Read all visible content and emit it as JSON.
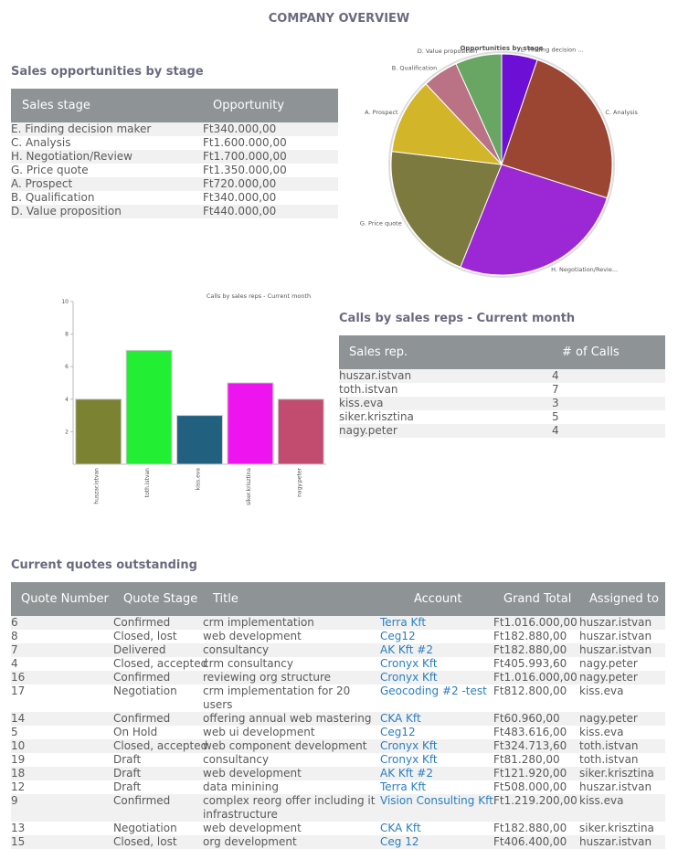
{
  "header": {
    "title": "COMPANY OVERVIEW"
  },
  "opportunities": {
    "title": "Sales opportunities by stage",
    "columns": [
      "Sales stage",
      "Opportunity"
    ],
    "rows": [
      [
        "E. Finding decision maker",
        "Ft340.000,00"
      ],
      [
        "C. Analysis",
        "Ft1.600.000,00"
      ],
      [
        "H. Negotiation/Review",
        "Ft1.700.000,00"
      ],
      [
        "G. Price quote",
        "Ft1.350.000,00"
      ],
      [
        "A. Prospect",
        "Ft720.000,00"
      ],
      [
        "B. Qualification",
        "Ft340.000,00"
      ],
      [
        "D. Value proposition",
        "Ft440.000,00"
      ]
    ]
  },
  "calls": {
    "title": "Calls by sales reps - Current month",
    "columns": [
      "Sales rep.",
      "# of Calls"
    ],
    "rows": [
      [
        "huszar.istvan",
        4
      ],
      [
        "toth.istvan",
        7
      ],
      [
        "kiss.eva",
        3
      ],
      [
        "siker.krisztina",
        5
      ],
      [
        "nagy.peter",
        4
      ]
    ]
  },
  "quotes": {
    "title": "Current quotes outstanding",
    "columns": [
      "Quote Number",
      "Quote Stage",
      "Title",
      "Account",
      "Grand Total",
      "Assigned to"
    ],
    "rows": [
      [
        6,
        "Confirmed",
        "crm implementation",
        "Terra Kft",
        "Ft1.016.000,00",
        "huszar.istvan"
      ],
      [
        8,
        "Closed, lost",
        "web development",
        "Ceg12",
        "Ft182.880,00",
        "huszar.istvan"
      ],
      [
        7,
        "Delivered",
        "consultancy",
        "AK Kft #2",
        "Ft182.880,00",
        "huszar.istvan"
      ],
      [
        4,
        "Closed, accepted",
        "crm consultancy",
        "Cronyx Kft",
        "Ft405.993,60",
        "nagy.peter"
      ],
      [
        16,
        "Confirmed",
        "reviewing org structure",
        "Cronyx Kft",
        "Ft1.016.000,00",
        "nagy.peter"
      ],
      [
        17,
        "Negotiation",
        "crm implementation for 20 users",
        "Geocoding #2 -test",
        "Ft812.800,00",
        "kiss.eva"
      ],
      [
        14,
        "Confirmed",
        "offering annual web mastering",
        "CKA Kft",
        "Ft60.960,00",
        "nagy.peter"
      ],
      [
        5,
        "On Hold",
        "web ui development",
        "Ceg12",
        "Ft483.616,00",
        "kiss.eva"
      ],
      [
        10,
        "Closed, accepted",
        "web component development",
        "Cronyx Kft",
        "Ft324.713,60",
        "toth.istvan"
      ],
      [
        19,
        "Draft",
        "consultancy",
        "Cronyx Kft",
        "Ft81.280,00",
        "toth.istvan"
      ],
      [
        18,
        "Draft",
        "web development",
        "AK Kft #2",
        "Ft121.920,00",
        "siker.krisztina"
      ],
      [
        12,
        "Draft",
        "data minining",
        "Terra Kft",
        "Ft508.000,00",
        "huszar.istvan"
      ],
      [
        9,
        "Confirmed",
        "complex reorg offer including it infrastructure",
        "Vision Consulting Kft",
        "Ft1.219.200,00",
        "kiss.eva"
      ],
      [
        13,
        "Negotiation",
        "web development",
        "CKA Kft",
        "Ft182.880,00",
        "siker.krisztina"
      ],
      [
        15,
        "Closed, lost",
        "org development",
        "Ceg 12",
        "Ft406.400,00",
        "huszar.istvan"
      ]
    ]
  },
  "chart_data": [
    {
      "type": "pie",
      "title": "Opportunities by stage",
      "categories": [
        "E. Finding decision ...",
        "C. Analysis",
        "H. Negotiation/Revie...",
        "G. Price quote",
        "A. Prospect",
        "B. Qualification",
        "D. Value proposition"
      ],
      "values": [
        340000,
        1600000,
        1700000,
        1350000,
        720000,
        340000,
        440000
      ],
      "colors": [
        "#6e0fd6",
        "#9b4632",
        "#9b28d4",
        "#7d7a3f",
        "#d3b52a",
        "#ba7285",
        "#6aa663"
      ]
    },
    {
      "type": "bar",
      "title": "Calls by sales reps - Current month",
      "categories": [
        "huszar.istvan",
        "toth.istvan",
        "kiss.eva",
        "siker.krisztina",
        "nagy.peter"
      ],
      "values": [
        4,
        7,
        3,
        5,
        4
      ],
      "colors": [
        "#7b8232",
        "#22ee33",
        "#226080",
        "#ee14f0",
        "#c24b70"
      ],
      "ylim": [
        0,
        10
      ],
      "yticks": [
        2,
        4,
        6,
        8,
        10
      ]
    }
  ]
}
